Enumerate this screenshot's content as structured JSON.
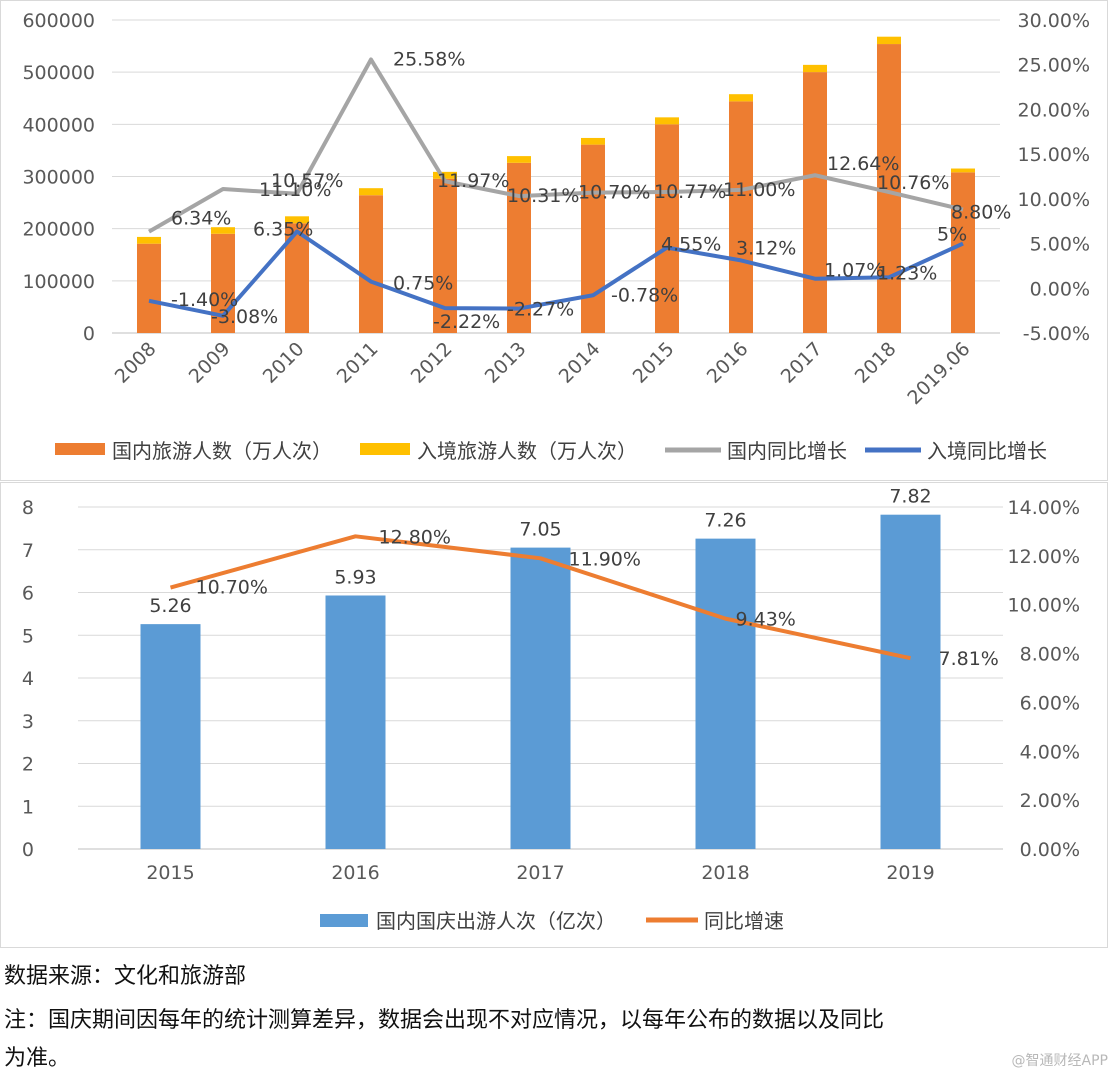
{
  "chart_data": [
    {
      "type": "bar",
      "stacked": true,
      "categories": [
        "2008",
        "2009",
        "2010",
        "2011",
        "2012",
        "2013",
        "2014",
        "2015",
        "2016",
        "2017",
        "2018",
        "2019.06"
      ],
      "series": [
        {
          "name": "国内旅游人数（万人次）",
          "axis": "left",
          "kind": "bar",
          "color": "#ED7D31",
          "values": [
            171200,
            190200,
            210300,
            264100,
            295700,
            326200,
            361100,
            400000,
            444000,
            500100,
            553900,
            308000
          ]
        },
        {
          "name": "入境旅游人数（万人次）",
          "axis": "left",
          "kind": "bar",
          "color": "#FFC000",
          "values": [
            13000,
            12600,
            13400,
            13500,
            13200,
            12900,
            12800,
            13400,
            13800,
            13900,
            14100,
            7300
          ]
        },
        {
          "name": "国内同比增长",
          "axis": "right",
          "kind": "line",
          "color": "#A5A5A5",
          "values": [
            6.34,
            11.1,
            10.57,
            25.58,
            11.97,
            10.31,
            10.7,
            10.77,
            11.0,
            12.64,
            10.76,
            8.8
          ],
          "labels": [
            "6.34%",
            "11.10%",
            "10.57%",
            "25.58%",
            "11.97%",
            "10.31%",
            "10.70%",
            "10.77%",
            "11.00%",
            "12.64%",
            "10.76%",
            "8.80%"
          ]
        },
        {
          "name": "入境同比增长",
          "axis": "right",
          "kind": "line",
          "color": "#4472C4",
          "values": [
            -1.4,
            -3.08,
            6.35,
            0.75,
            -2.22,
            -2.27,
            -0.78,
            4.55,
            3.12,
            1.07,
            1.23,
            5.0
          ],
          "labels": [
            "-1.40%",
            "-3.08%",
            "6.35%",
            "0.75%",
            "-2.22%",
            "-2.27%",
            "-0.78%",
            "4.55%",
            "3.12%",
            "1.07%",
            "1.23%",
            "5%"
          ]
        }
      ],
      "left_axis": {
        "min": 0,
        "max": 600000,
        "ticks": [
          "0",
          "100000",
          "200000",
          "300000",
          "400000",
          "500000",
          "600000"
        ]
      },
      "right_axis": {
        "min": -5,
        "max": 30,
        "ticks": [
          "-5.00%",
          "0.00%",
          "5.00%",
          "10.00%",
          "15.00%",
          "20.00%",
          "25.00%",
          "30.00%"
        ]
      },
      "legend_position": "bottom"
    },
    {
      "type": "bar",
      "categories": [
        "2015",
        "2016",
        "2017",
        "2018",
        "2019"
      ],
      "series": [
        {
          "name": "国内国庆出游人次（亿次）",
          "axis": "left",
          "kind": "bar",
          "color": "#5B9BD5",
          "values": [
            5.26,
            5.93,
            7.05,
            7.26,
            7.82
          ],
          "labels": [
            "5.26",
            "5.93",
            "7.05",
            "7.26",
            "7.82"
          ]
        },
        {
          "name": "同比增速",
          "axis": "right",
          "kind": "line",
          "color": "#ED7D31",
          "values": [
            10.7,
            12.8,
            11.9,
            9.43,
            7.81
          ],
          "labels": [
            "10.70%",
            "12.80%",
            "11.90%",
            "9.43%",
            "7.81%"
          ]
        }
      ],
      "left_axis": {
        "min": 0,
        "max": 8,
        "ticks": [
          "0",
          "1",
          "2",
          "3",
          "4",
          "5",
          "6",
          "7",
          "8"
        ]
      },
      "right_axis": {
        "min": 0,
        "max": 14,
        "ticks": [
          "0.00%",
          "2.00%",
          "4.00%",
          "6.00%",
          "8.00%",
          "10.00%",
          "12.00%",
          "14.00%"
        ]
      },
      "legend_position": "bottom"
    }
  ],
  "notes": {
    "source": "数据来源：文化和旅游部",
    "note_line1": "注：国庆期间因每年的统计测算差异，数据会出现不对应情况，以每年公布的数据以及同比",
    "note_line2": "为准。"
  },
  "watermark": "@智通财经APP"
}
